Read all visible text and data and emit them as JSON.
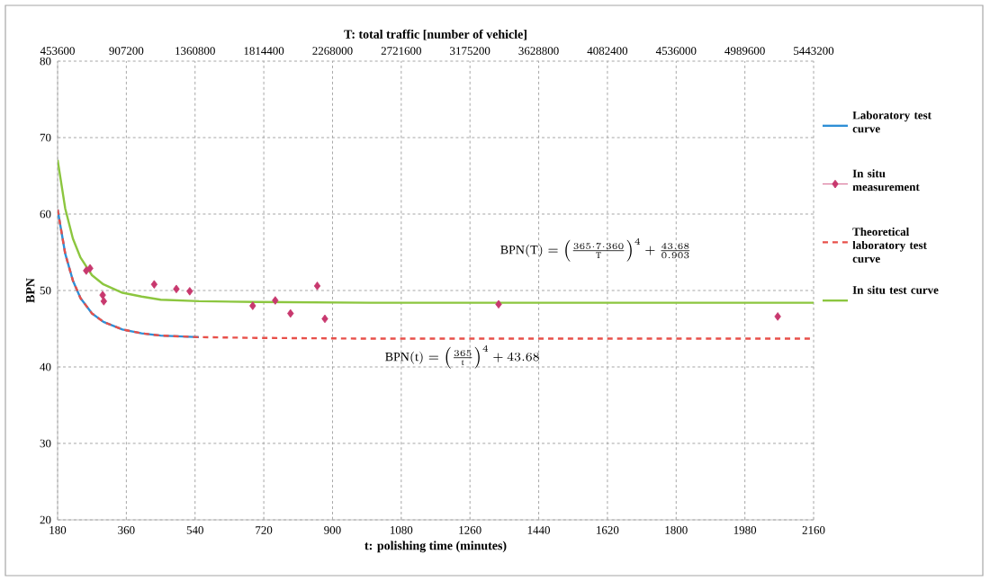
{
  "chart_data": {
    "type": "line",
    "xlabel": "t: polishing time (minutes)",
    "ylabel": "BPN",
    "x2label": "T: total traffic [number of vehicle]",
    "xlim": [
      180,
      2160
    ],
    "xticks": [
      180,
      360,
      540,
      720,
      900,
      1080,
      1260,
      1440,
      1620,
      1800,
      1980,
      2160
    ],
    "ylim": [
      20,
      80
    ],
    "yticks": [
      20,
      30,
      40,
      50,
      60,
      70,
      80
    ],
    "x2lim": [
      453600,
      5443200
    ],
    "x2ticks": [
      453600,
      907200,
      1360800,
      1814400,
      2268000,
      2721600,
      3175200,
      3628800,
      4082400,
      4536000,
      4989600,
      5443200
    ],
    "grid": true,
    "legend": "right",
    "annotations": [
      "\\mathrm{BPN(t)}=\\left(\\frac{365}{\\mathrm{t}}\\right)^{4}+43.68",
      "\\mathrm{BPN(T)}=\\left(\\frac{365\\cdot 7\\cdot 360}{\\mathrm{T}}\\right)^{4}+\\frac{43.68}{0.903}"
    ],
    "series": [
      {
        "name": "Laboratory test curve",
        "type": "line",
        "color": "#2e8fd6",
        "line_style": "solid",
        "marker": "none",
        "x": [
          180,
          200,
          220,
          240,
          270,
          300,
          350,
          400,
          450,
          500,
          550
        ],
        "values": [
          60.6,
          54.8,
          51.3,
          49.0,
          47.0,
          45.9,
          44.9,
          44.4,
          44.1,
          44.0,
          43.9
        ]
      },
      {
        "name": "In situ measurement",
        "type": "scatter",
        "color": "#c8386e",
        "marker": "diamond",
        "x": [
          255,
          265,
          298,
          301,
          433,
          491,
          526,
          691,
          750,
          790,
          860,
          880,
          1335,
          2066
        ],
        "values": [
          52.6,
          52.9,
          49.4,
          48.6,
          50.8,
          50.2,
          49.9,
          48.0,
          48.7,
          47.0,
          50.6,
          46.3,
          48.2,
          46.6
        ]
      },
      {
        "name": "Theoretical laboratory test curve",
        "type": "line",
        "color": "#e8504a",
        "line_style": "dashed",
        "marker": "none",
        "x": [
          180,
          200,
          220,
          240,
          270,
          300,
          350,
          400,
          450,
          500,
          550,
          700,
          1000,
          1500,
          2160
        ],
        "values": [
          60.6,
          54.8,
          51.3,
          49.0,
          47.0,
          45.9,
          44.9,
          44.4,
          44.1,
          44.0,
          43.9,
          43.8,
          43.7,
          43.7,
          43.7
        ]
      },
      {
        "name": "In situ test curve",
        "type": "line",
        "color": "#8cc63f",
        "line_style": "solid",
        "marker": "none",
        "x": [
          180,
          200,
          220,
          240,
          270,
          300,
          350,
          400,
          450,
          500,
          550,
          700,
          1000,
          1500,
          2160
        ],
        "values": [
          67.1,
          60.7,
          56.8,
          54.3,
          52.0,
          50.8,
          49.7,
          49.2,
          48.8,
          48.7,
          48.6,
          48.5,
          48.4,
          48.4,
          48.4
        ]
      }
    ]
  }
}
